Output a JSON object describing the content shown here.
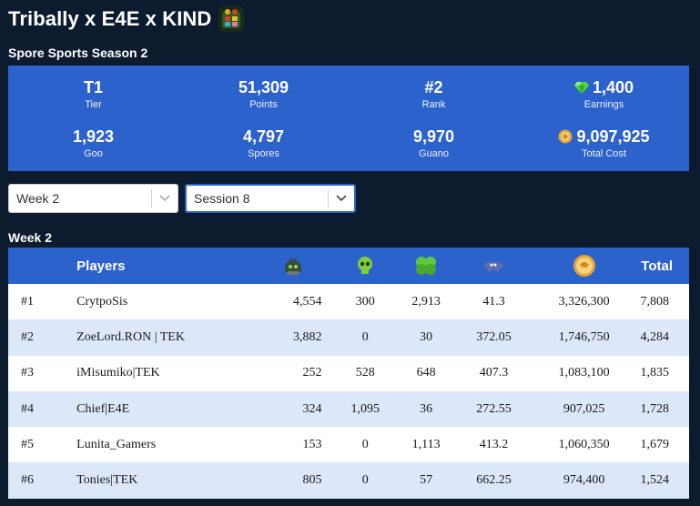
{
  "header": {
    "title": "Tribally x E4E x KIND"
  },
  "season": {
    "title": "Spore Sports Season 2"
  },
  "stats": [
    {
      "value": "T1",
      "label": "Tier",
      "icon": ""
    },
    {
      "value": "51,309",
      "label": "Points",
      "icon": ""
    },
    {
      "value": "#2",
      "label": "Rank",
      "icon": ""
    },
    {
      "value": "1,400",
      "label": "Earnings",
      "icon": "gem-icon"
    },
    {
      "value": "1,923",
      "label": "Goo",
      "icon": ""
    },
    {
      "value": "4,797",
      "label": "Spores",
      "icon": ""
    },
    {
      "value": "9,970",
      "label": "Guano",
      "icon": ""
    },
    {
      "value": "9,097,925",
      "label": "Total Cost",
      "icon": "coin-icon"
    }
  ],
  "filters": {
    "week": "Week 2",
    "session": "Session 8"
  },
  "table": {
    "section_title": "Week 2",
    "headers": {
      "players": "Players",
      "total": "Total"
    },
    "rows": [
      {
        "rank": "#1",
        "name": "CrytpoSis",
        "a": "4,554",
        "b": "300",
        "c": "2,913",
        "d": "41.3",
        "e": "3,326,300",
        "total": "7,808"
      },
      {
        "rank": "#2",
        "name": "ZoeLord.RON | TEK",
        "a": "3,882",
        "b": "0",
        "c": "30",
        "d": "372.05",
        "e": "1,746,750",
        "total": "4,284"
      },
      {
        "rank": "#3",
        "name": "iMisumiko|TEK",
        "a": "252",
        "b": "528",
        "c": "648",
        "d": "407.3",
        "e": "1,083,100",
        "total": "1,835"
      },
      {
        "rank": "#4",
        "name": "Chief|E4E",
        "a": "324",
        "b": "1,095",
        "c": "36",
        "d": "272.55",
        "e": "907,025",
        "total": "1,728"
      },
      {
        "rank": "#5",
        "name": "Lunita_Gamers",
        "a": "153",
        "b": "0",
        "c": "1,113",
        "d": "413.2",
        "e": "1,060,350",
        "total": "1,679"
      },
      {
        "rank": "#6",
        "name": "Tonies|TEK",
        "a": "805",
        "b": "0",
        "c": "57",
        "d": "662.25",
        "e": "974,400",
        "total": "1,524"
      }
    ]
  }
}
